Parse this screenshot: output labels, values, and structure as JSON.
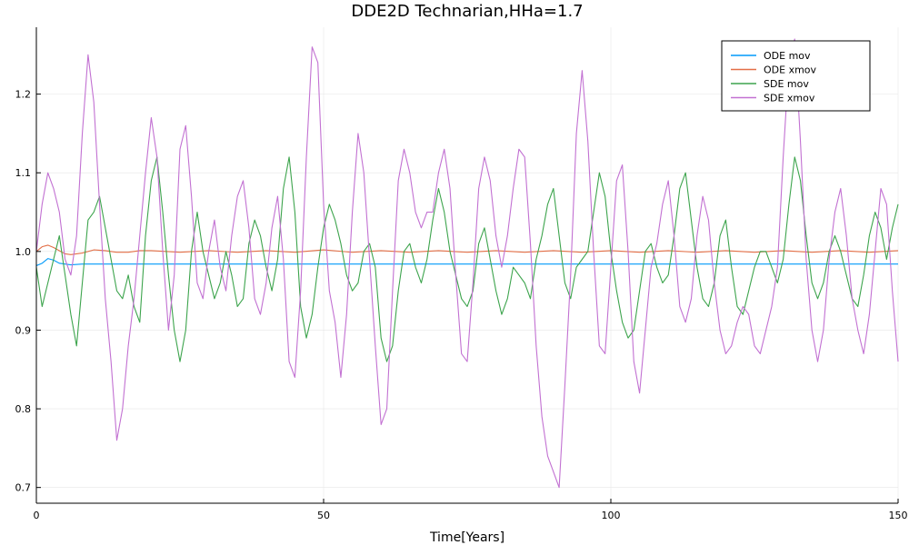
{
  "chart_data": {
    "type": "line",
    "title": "DDE2D Technarian,HHa=1.7",
    "xlabel": "Time[Years]",
    "ylabel": "",
    "xlim": [
      0,
      150
    ],
    "ylim": [
      0.68,
      1.285
    ],
    "xticks": [
      0,
      50,
      100,
      150
    ],
    "yticks": [
      0.7,
      0.8,
      0.9,
      1.0,
      1.1,
      1.2
    ],
    "xtick_labels": [
      "0",
      "50",
      "100",
      "150"
    ],
    "ytick_labels": [
      "0.7",
      "0.8",
      "0.9",
      "1.0",
      "1.1",
      "1.2"
    ],
    "grid": true,
    "legend_position": "top-right",
    "series": [
      {
        "name": "ODE mov",
        "color": "#009AFA",
        "x": [
          0,
          1,
          2,
          3,
          4,
          6,
          8,
          10,
          15,
          20,
          30,
          40,
          50,
          60,
          70,
          80,
          90,
          100,
          110,
          120,
          130,
          140,
          150
        ],
        "y": [
          0.982,
          0.985,
          0.991,
          0.989,
          0.985,
          0.983,
          0.984,
          0.984,
          0.984,
          0.984,
          0.984,
          0.984,
          0.984,
          0.984,
          0.984,
          0.984,
          0.984,
          0.984,
          0.984,
          0.984,
          0.984,
          0.984,
          0.984
        ]
      },
      {
        "name": "ODE xmov",
        "color": "#E36F47",
        "x": [
          0,
          1,
          2,
          3,
          4,
          5,
          6,
          8,
          10,
          12,
          14,
          16,
          18,
          20,
          25,
          30,
          35,
          40,
          45,
          50,
          55,
          60,
          65,
          70,
          75,
          80,
          85,
          90,
          95,
          100,
          105,
          110,
          115,
          120,
          125,
          130,
          135,
          140,
          145,
          150
        ],
        "y": [
          1.0,
          1.006,
          1.008,
          1.005,
          1.001,
          0.997,
          0.996,
          0.998,
          1.002,
          1.001,
          0.999,
          0.999,
          1.001,
          1.001,
          0.999,
          1.001,
          0.999,
          1.001,
          0.999,
          1.002,
          0.999,
          1.001,
          0.999,
          1.001,
          0.999,
          1.001,
          0.999,
          1.001,
          0.999,
          1.001,
          0.999,
          1.001,
          0.999,
          1.001,
          0.999,
          1.001,
          0.999,
          1.001,
          0.999,
          1.001
        ]
      },
      {
        "name": "SDE mov",
        "color": "#3DA44D",
        "x": [
          0,
          1,
          2,
          3,
          4,
          5,
          6,
          7,
          8,
          9,
          10,
          11,
          12,
          13,
          14,
          15,
          16,
          17,
          18,
          19,
          20,
          21,
          22,
          23,
          24,
          25,
          26,
          27,
          28,
          29,
          30,
          31,
          32,
          33,
          34,
          35,
          36,
          37,
          38,
          39,
          40,
          41,
          42,
          43,
          44,
          45,
          46,
          47,
          48,
          49,
          50,
          51,
          52,
          53,
          54,
          55,
          56,
          57,
          58,
          59,
          60,
          61,
          62,
          63,
          64,
          65,
          66,
          67,
          68,
          69,
          70,
          71,
          72,
          73,
          74,
          75,
          76,
          77,
          78,
          79,
          80,
          81,
          82,
          83,
          84,
          85,
          86,
          87,
          88,
          89,
          90,
          91,
          92,
          93,
          94,
          95,
          96,
          97,
          98,
          99,
          100,
          101,
          102,
          103,
          104,
          105,
          106,
          107,
          108,
          109,
          110,
          111,
          112,
          113,
          114,
          115,
          116,
          117,
          118,
          119,
          120,
          121,
          122,
          123,
          124,
          125,
          126,
          127,
          128,
          129,
          130,
          131,
          132,
          133,
          134,
          135,
          136,
          137,
          138,
          139,
          140,
          141,
          142,
          143,
          144,
          145,
          146,
          147,
          148,
          149,
          150
        ],
        "y": [
          0.98,
          0.93,
          0.96,
          0.99,
          1.02,
          0.97,
          0.92,
          0.88,
          0.96,
          1.04,
          1.05,
          1.07,
          1.03,
          0.99,
          0.95,
          0.94,
          0.97,
          0.93,
          0.91,
          1.02,
          1.09,
          1.12,
          1.05,
          0.97,
          0.9,
          0.86,
          0.9,
          1.0,
          1.05,
          1.0,
          0.97,
          0.94,
          0.96,
          1.0,
          0.97,
          0.93,
          0.94,
          1.01,
          1.04,
          1.02,
          0.98,
          0.95,
          0.99,
          1.08,
          1.12,
          1.05,
          0.93,
          0.89,
          0.92,
          0.98,
          1.03,
          1.06,
          1.04,
          1.01,
          0.97,
          0.95,
          0.96,
          1.0,
          1.01,
          0.98,
          0.89,
          0.86,
          0.88,
          0.95,
          1.0,
          1.01,
          0.98,
          0.96,
          0.99,
          1.04,
          1.08,
          1.05,
          1.0,
          0.97,
          0.94,
          0.93,
          0.95,
          1.01,
          1.03,
          0.99,
          0.95,
          0.92,
          0.94,
          0.98,
          0.97,
          0.96,
          0.94,
          0.99,
          1.02,
          1.06,
          1.08,
          1.02,
          0.96,
          0.94,
          0.98,
          0.99,
          1.0,
          1.05,
          1.1,
          1.07,
          1.0,
          0.95,
          0.91,
          0.89,
          0.9,
          0.95,
          1.0,
          1.01,
          0.98,
          0.96,
          0.97,
          1.02,
          1.08,
          1.1,
          1.04,
          0.98,
          0.94,
          0.93,
          0.96,
          1.02,
          1.04,
          0.98,
          0.93,
          0.92,
          0.95,
          0.98,
          1.0,
          1.0,
          0.98,
          0.96,
          0.99,
          1.06,
          1.12,
          1.09,
          1.02,
          0.96,
          0.94,
          0.96,
          1.0,
          1.02,
          1.0,
          0.97,
          0.94,
          0.93,
          0.97,
          1.02,
          1.05,
          1.03,
          0.99,
          1.03,
          1.06
        ]
      },
      {
        "name": "SDE xmov",
        "color": "#C271D2",
        "x": [
          0,
          1,
          2,
          3,
          4,
          5,
          6,
          7,
          8,
          9,
          10,
          11,
          12,
          13,
          14,
          15,
          16,
          17,
          18,
          19,
          20,
          21,
          22,
          23,
          24,
          25,
          26,
          27,
          28,
          29,
          30,
          31,
          32,
          33,
          34,
          35,
          36,
          37,
          38,
          39,
          40,
          41,
          42,
          43,
          44,
          45,
          46,
          47,
          48,
          49,
          50,
          51,
          52,
          53,
          54,
          55,
          56,
          57,
          58,
          59,
          60,
          61,
          62,
          63,
          64,
          65,
          66,
          67,
          68,
          69,
          70,
          71,
          72,
          73,
          74,
          75,
          76,
          77,
          78,
          79,
          80,
          81,
          82,
          83,
          84,
          85,
          86,
          87,
          88,
          89,
          90,
          91,
          92,
          93,
          94,
          95,
          96,
          97,
          98,
          99,
          100,
          101,
          102,
          103,
          104,
          105,
          106,
          107,
          108,
          109,
          110,
          111,
          112,
          113,
          114,
          115,
          116,
          117,
          118,
          119,
          120,
          121,
          122,
          123,
          124,
          125,
          126,
          127,
          128,
          129,
          130,
          131,
          132,
          133,
          134,
          135,
          136,
          137,
          138,
          139,
          140,
          141,
          142,
          143,
          144,
          145,
          146,
          147,
          148,
          149,
          150
        ],
        "y": [
          1.0,
          1.06,
          1.1,
          1.08,
          1.05,
          0.99,
          0.97,
          1.02,
          1.15,
          1.25,
          1.19,
          1.06,
          0.94,
          0.86,
          0.76,
          0.8,
          0.88,
          0.94,
          1.02,
          1.1,
          1.17,
          1.12,
          1.0,
          0.9,
          0.97,
          1.13,
          1.16,
          1.07,
          0.96,
          0.94,
          1.0,
          1.04,
          0.98,
          0.95,
          1.02,
          1.07,
          1.09,
          1.03,
          0.94,
          0.92,
          0.96,
          1.03,
          1.07,
          0.99,
          0.86,
          0.84,
          0.95,
          1.12,
          1.26,
          1.24,
          1.06,
          0.95,
          0.91,
          0.84,
          0.92,
          1.05,
          1.15,
          1.1,
          0.99,
          0.88,
          0.78,
          0.8,
          0.95,
          1.09,
          1.13,
          1.1,
          1.05,
          1.03,
          1.05,
          1.05,
          1.1,
          1.13,
          1.08,
          0.97,
          0.87,
          0.86,
          0.96,
          1.08,
          1.12,
          1.09,
          1.02,
          0.98,
          1.02,
          1.08,
          1.13,
          1.12,
          1.01,
          0.88,
          0.79,
          0.74,
          0.72,
          0.7,
          0.83,
          0.97,
          1.15,
          1.23,
          1.14,
          1.0,
          0.88,
          0.87,
          0.98,
          1.09,
          1.11,
          1.0,
          0.86,
          0.82,
          0.9,
          0.98,
          1.01,
          1.06,
          1.09,
          1.02,
          0.93,
          0.91,
          0.94,
          1.02,
          1.07,
          1.04,
          0.96,
          0.9,
          0.87,
          0.88,
          0.91,
          0.93,
          0.92,
          0.88,
          0.87,
          0.9,
          0.93,
          0.98,
          1.12,
          1.24,
          1.27,
          1.14,
          0.99,
          0.9,
          0.86,
          0.9,
          0.99,
          1.05,
          1.08,
          1.02,
          0.94,
          0.9,
          0.87,
          0.92,
          1.0,
          1.08,
          1.06,
          0.95,
          0.86
        ]
      }
    ]
  }
}
